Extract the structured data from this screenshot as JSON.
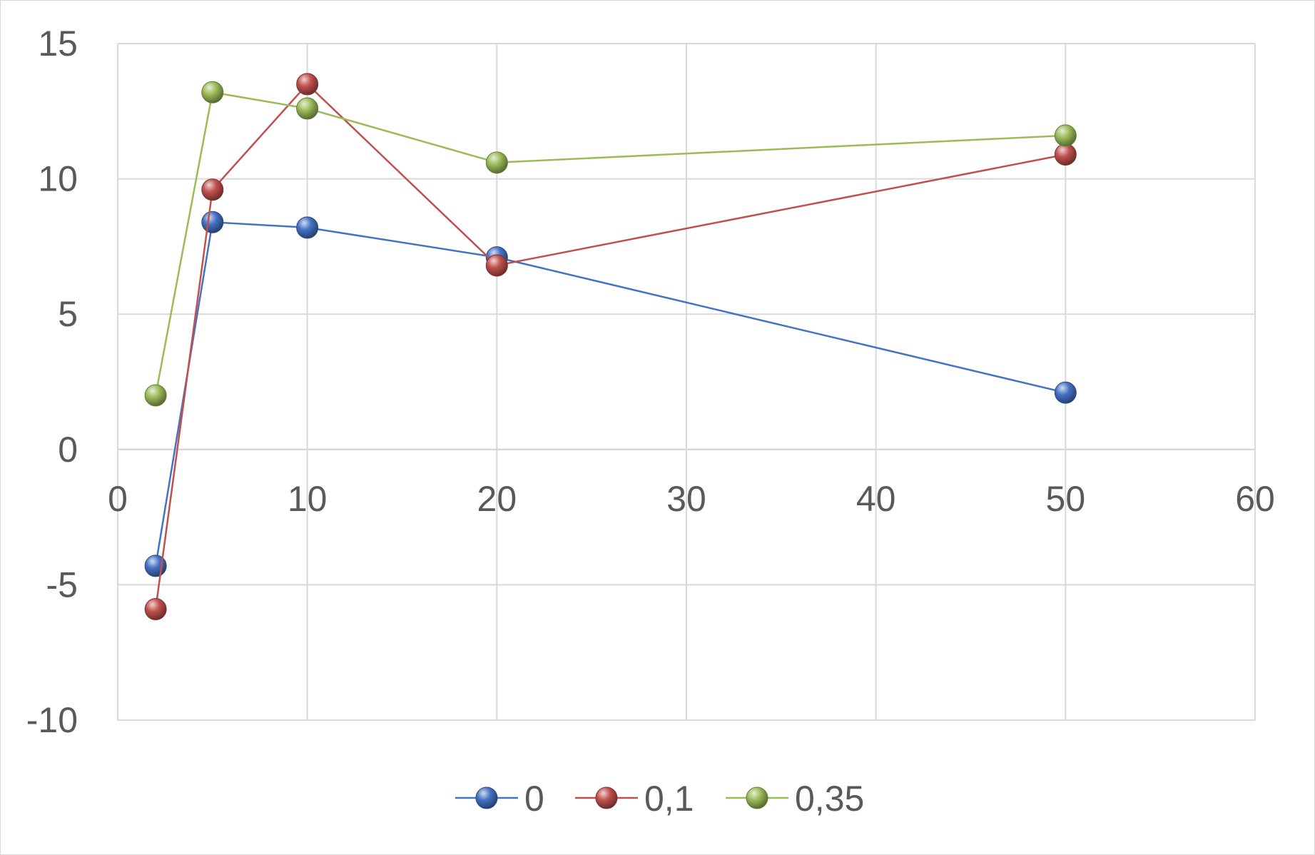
{
  "chart_data": {
    "type": "scatter",
    "title": "",
    "xlabel": "",
    "ylabel": "",
    "xlim": [
      0,
      60
    ],
    "ylim": [
      -10,
      15
    ],
    "x_ticks": [
      0,
      10,
      20,
      30,
      40,
      50,
      60
    ],
    "y_ticks": [
      -10,
      -5,
      0,
      5,
      10,
      15
    ],
    "x_tick_labels": [
      "0",
      "10",
      "20",
      "30",
      "40",
      "50",
      "60"
    ],
    "y_tick_labels": [
      "-10",
      "-5",
      "0",
      "5",
      "10",
      "15"
    ],
    "grid": true,
    "legend_position": "bottom",
    "series": [
      {
        "name": "0",
        "color": "#4472c4",
        "x": [
          2,
          5,
          10,
          20,
          50
        ],
        "y": [
          -4.3,
          8.4,
          8.2,
          7.1,
          2.1
        ]
      },
      {
        "name": "0,1",
        "color": "#c0504d",
        "x": [
          2,
          5,
          10,
          20,
          50
        ],
        "y": [
          -5.9,
          9.6,
          13.5,
          6.8,
          10.9
        ]
      },
      {
        "name": "0,35",
        "color": "#9bbb59",
        "x": [
          2,
          5,
          10,
          20,
          50
        ],
        "y": [
          2.0,
          13.2,
          12.6,
          10.6,
          11.6
        ]
      }
    ]
  }
}
